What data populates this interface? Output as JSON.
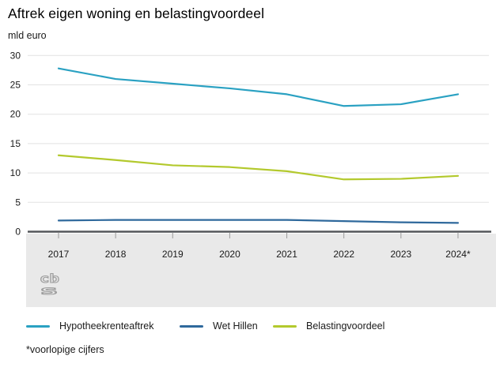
{
  "title": "Aftrek eigen woning en belastingvoordeel",
  "unit_label": "mld euro",
  "footnote": "*voorlopige cijfers",
  "logo": {
    "line1": "cb",
    "line2": "s"
  },
  "colors": {
    "hypotheekrenteaftrek": "#2aa1c2",
    "wet_hillen": "#2f699c",
    "belastingvoordeel": "#b3c92d",
    "zero_axis": "#54565a",
    "gridline": "#e2e2e2",
    "band_background": "#e9e9e9"
  },
  "chart_data": {
    "type": "line",
    "title": "Aftrek eigen woning en belastingvoordeel",
    "ylabel": "mld euro",
    "xlabel": "",
    "ylim": [
      0,
      30
    ],
    "yticks": [
      0,
      5,
      10,
      15,
      20,
      25,
      30
    ],
    "grid": true,
    "legend_position": "bottom",
    "categories": [
      "2017",
      "2018",
      "2019",
      "2020",
      "2021",
      "2022",
      "2023",
      "2024*"
    ],
    "series": [
      {
        "name": "Hypotheekrenteaftrek",
        "color": "#2aa1c2",
        "values": [
          27.8,
          26.0,
          25.2,
          24.4,
          23.4,
          21.4,
          21.7,
          23.4
        ]
      },
      {
        "name": "Wet Hillen",
        "color": "#2f699c",
        "values": [
          1.9,
          2.0,
          2.0,
          2.0,
          2.0,
          1.8,
          1.6,
          1.5
        ]
      },
      {
        "name": "Belastingvoordeel",
        "color": "#b3c92d",
        "values": [
          13.0,
          12.2,
          11.3,
          11.0,
          10.3,
          8.9,
          9.0,
          9.5
        ]
      }
    ]
  }
}
